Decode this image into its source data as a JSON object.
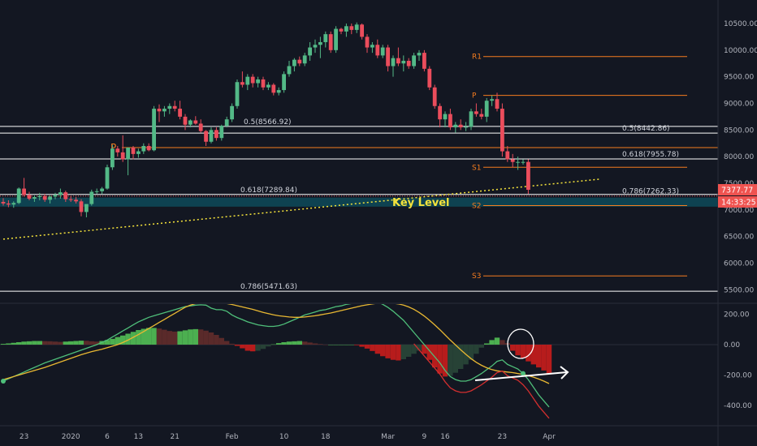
{
  "colors": {
    "background": "#131722",
    "bull": "#53b987",
    "bear": "#eb4d5c",
    "pivot": "#f57c1f",
    "fib": "#ffffff",
    "key_zone": "#0e4a59",
    "trend": "#f5e33b",
    "hist_pos": "#4caf50",
    "hist_pos_dim": "#5a2a2a",
    "hist_neg": "#b71c1c",
    "hist_neg_dim": "#274236",
    "macd": "#4fbf7a",
    "signal": "#e9b832",
    "red_line": "#d32f2f"
  },
  "price_axis": {
    "labels": [
      "10500.00",
      "10000.00",
      "9500.00",
      "9000.00",
      "8500.00",
      "8000.00",
      "7500.00",
      "7000.00",
      "6500.00",
      "6000.00",
      "5500.00"
    ],
    "values": [
      10500,
      10000,
      9500,
      9000,
      8500,
      8000,
      7500,
      7000,
      6500,
      6000,
      5500
    ],
    "last_price": "7377.77",
    "countdown": "14:33:25"
  },
  "osc_axis": {
    "labels": [
      "200.00",
      "0.00",
      "-200.00",
      "-400.00"
    ],
    "values": [
      200,
      0,
      -200,
      -400
    ]
  },
  "time_axis": {
    "labels": [
      "23",
      "2020",
      "6",
      "13",
      "21",
      "Feb",
      "10",
      "18",
      "Mar",
      "9",
      "16",
      "23",
      "Apr"
    ],
    "bars": [
      4,
      13,
      20,
      26,
      33,
      44,
      54,
      62,
      74,
      81,
      85,
      96,
      105
    ]
  },
  "levels": {
    "fib": [
      {
        "label": "0.5(8566.92)",
        "value": 8566.92
      },
      {
        "label": "0.618(7289.84)",
        "value": 7289.84
      },
      {
        "label": "0.786(5471.63)",
        "value": 5471.63
      },
      {
        "label": "0.5(8442.86)",
        "value": 8442.86
      },
      {
        "label": "0.618(7955.78)",
        "value": 7955.78
      },
      {
        "label": "0.786(7262.33)",
        "value": 7262.33
      }
    ],
    "pivots": [
      {
        "label": "P",
        "value": 8170
      },
      {
        "label": "R1",
        "value": 9880
      },
      {
        "label": "P",
        "value": 9150
      },
      {
        "label": "S1",
        "value": 7800
      },
      {
        "label": "S2",
        "value": 7080
      },
      {
        "label": "S3",
        "value": 5760
      }
    ],
    "key_level": {
      "label": "Key Level",
      "low": 7060,
      "high": 7230
    }
  },
  "chart_data": [
    {
      "type": "candlestick",
      "ylim": [
        5000,
        10750
      ],
      "x_dates": [
        "2019-12-16",
        "2020-04-05"
      ],
      "candles": [
        {
          "o": 7150,
          "h": 7220,
          "l": 7080,
          "c": 7120
        },
        {
          "o": 7120,
          "h": 7180,
          "l": 7050,
          "c": 7100
        },
        {
          "o": 7100,
          "h": 7160,
          "l": 7040,
          "c": 7130
        },
        {
          "o": 7130,
          "h": 7420,
          "l": 7110,
          "c": 7400
        },
        {
          "o": 7400,
          "h": 7600,
          "l": 7250,
          "c": 7280
        },
        {
          "o": 7280,
          "h": 7340,
          "l": 7180,
          "c": 7210
        },
        {
          "o": 7210,
          "h": 7270,
          "l": 7150,
          "c": 7240
        },
        {
          "o": 7240,
          "h": 7320,
          "l": 7180,
          "c": 7260
        },
        {
          "o": 7260,
          "h": 7300,
          "l": 7150,
          "c": 7190
        },
        {
          "o": 7190,
          "h": 7270,
          "l": 7120,
          "c": 7250
        },
        {
          "o": 7250,
          "h": 7320,
          "l": 7200,
          "c": 7280
        },
        {
          "o": 7280,
          "h": 7400,
          "l": 7210,
          "c": 7330
        },
        {
          "o": 7330,
          "h": 7360,
          "l": 7150,
          "c": 7200
        },
        {
          "o": 7200,
          "h": 7260,
          "l": 7150,
          "c": 7190
        },
        {
          "o": 7190,
          "h": 7240,
          "l": 7120,
          "c": 7160
        },
        {
          "o": 7160,
          "h": 7200,
          "l": 6880,
          "c": 6960
        },
        {
          "o": 6960,
          "h": 7100,
          "l": 6860,
          "c": 7110
        },
        {
          "o": 7110,
          "h": 7380,
          "l": 7080,
          "c": 7340
        },
        {
          "o": 7340,
          "h": 7400,
          "l": 7300,
          "c": 7350
        },
        {
          "o": 7350,
          "h": 7430,
          "l": 7300,
          "c": 7400
        },
        {
          "o": 7400,
          "h": 7850,
          "l": 7380,
          "c": 7800
        },
        {
          "o": 7800,
          "h": 8220,
          "l": 7750,
          "c": 8150
        },
        {
          "o": 8150,
          "h": 8200,
          "l": 8000,
          "c": 8080
        },
        {
          "o": 8080,
          "h": 8400,
          "l": 7900,
          "c": 7950
        },
        {
          "o": 7950,
          "h": 8170,
          "l": 7650,
          "c": 8170
        },
        {
          "o": 8170,
          "h": 8200,
          "l": 7950,
          "c": 8050
        },
        {
          "o": 8050,
          "h": 8150,
          "l": 7980,
          "c": 8100
        },
        {
          "o": 8100,
          "h": 8250,
          "l": 8050,
          "c": 8200
        },
        {
          "o": 8200,
          "h": 8250,
          "l": 8100,
          "c": 8120
        },
        {
          "o": 8120,
          "h": 8950,
          "l": 8100,
          "c": 8900
        },
        {
          "o": 8900,
          "h": 8980,
          "l": 8650,
          "c": 8850
        },
        {
          "o": 8850,
          "h": 8950,
          "l": 8750,
          "c": 8900
        },
        {
          "o": 8900,
          "h": 9000,
          "l": 8800,
          "c": 8950
        },
        {
          "o": 8950,
          "h": 9050,
          "l": 8850,
          "c": 8900
        },
        {
          "o": 8900,
          "h": 9050,
          "l": 8700,
          "c": 8750
        },
        {
          "o": 8750,
          "h": 8800,
          "l": 8500,
          "c": 8600
        },
        {
          "o": 8600,
          "h": 8700,
          "l": 8550,
          "c": 8680
        },
        {
          "o": 8680,
          "h": 8760,
          "l": 8600,
          "c": 8620
        },
        {
          "o": 8620,
          "h": 8700,
          "l": 8450,
          "c": 8480
        },
        {
          "o": 8480,
          "h": 8500,
          "l": 8200,
          "c": 8280
        },
        {
          "o": 8280,
          "h": 8550,
          "l": 8250,
          "c": 8500
        },
        {
          "o": 8500,
          "h": 8550,
          "l": 8300,
          "c": 8350
        },
        {
          "o": 8350,
          "h": 8600,
          "l": 8300,
          "c": 8580
        },
        {
          "o": 8580,
          "h": 8750,
          "l": 8550,
          "c": 8700
        },
        {
          "o": 8700,
          "h": 9000,
          "l": 8650,
          "c": 8950
        },
        {
          "o": 8950,
          "h": 9450,
          "l": 8900,
          "c": 9400
        },
        {
          "o": 9400,
          "h": 9600,
          "l": 9300,
          "c": 9350
        },
        {
          "o": 9350,
          "h": 9550,
          "l": 9250,
          "c": 9500
        },
        {
          "o": 9500,
          "h": 9550,
          "l": 9300,
          "c": 9380
        },
        {
          "o": 9380,
          "h": 9500,
          "l": 9300,
          "c": 9450
        },
        {
          "o": 9450,
          "h": 9500,
          "l": 9250,
          "c": 9300
        },
        {
          "o": 9300,
          "h": 9400,
          "l": 9250,
          "c": 9350
        },
        {
          "o": 9350,
          "h": 9380,
          "l": 9150,
          "c": 9200
        },
        {
          "o": 9200,
          "h": 9300,
          "l": 9150,
          "c": 9250
        },
        {
          "o": 9250,
          "h": 9600,
          "l": 9200,
          "c": 9550
        },
        {
          "o": 9550,
          "h": 9800,
          "l": 9500,
          "c": 9700
        },
        {
          "o": 9700,
          "h": 9850,
          "l": 9600,
          "c": 9820
        },
        {
          "o": 9820,
          "h": 9880,
          "l": 9700,
          "c": 9750
        },
        {
          "o": 9750,
          "h": 9950,
          "l": 9700,
          "c": 9900
        },
        {
          "o": 9900,
          "h": 10150,
          "l": 9800,
          "c": 10050
        },
        {
          "o": 10050,
          "h": 10200,
          "l": 9950,
          "c": 10100
        },
        {
          "o": 10100,
          "h": 10250,
          "l": 9850,
          "c": 10150
        },
        {
          "o": 10150,
          "h": 10350,
          "l": 10050,
          "c": 10300
        },
        {
          "o": 10300,
          "h": 10350,
          "l": 9950,
          "c": 10000
        },
        {
          "o": 10000,
          "h": 10450,
          "l": 9950,
          "c": 10400
        },
        {
          "o": 10400,
          "h": 10420,
          "l": 10300,
          "c": 10350
        },
        {
          "o": 10350,
          "h": 10500,
          "l": 10250,
          "c": 10450
        },
        {
          "o": 10450,
          "h": 10500,
          "l": 10300,
          "c": 10380
        },
        {
          "o": 10380,
          "h": 10520,
          "l": 10320,
          "c": 10480
        },
        {
          "o": 10480,
          "h": 10500,
          "l": 10200,
          "c": 10250
        },
        {
          "o": 10250,
          "h": 10300,
          "l": 9950,
          "c": 10050
        },
        {
          "o": 10050,
          "h": 10150,
          "l": 9950,
          "c": 10100
        },
        {
          "o": 10100,
          "h": 10200,
          "l": 9850,
          "c": 9900
        },
        {
          "o": 9900,
          "h": 10100,
          "l": 9850,
          "c": 10050
        },
        {
          "o": 10050,
          "h": 10100,
          "l": 9600,
          "c": 9700
        },
        {
          "o": 9700,
          "h": 9900,
          "l": 9500,
          "c": 9850
        },
        {
          "o": 9850,
          "h": 10050,
          "l": 9700,
          "c": 9750
        },
        {
          "o": 9750,
          "h": 9900,
          "l": 9600,
          "c": 9800
        },
        {
          "o": 9800,
          "h": 9850,
          "l": 9650,
          "c": 9700
        },
        {
          "o": 9700,
          "h": 9950,
          "l": 9650,
          "c": 9900
        },
        {
          "o": 9900,
          "h": 10000,
          "l": 9800,
          "c": 9950
        },
        {
          "o": 9950,
          "h": 10000,
          "l": 9600,
          "c": 9650
        },
        {
          "o": 9650,
          "h": 9700,
          "l": 9250,
          "c": 9300
        },
        {
          "o": 9300,
          "h": 9350,
          "l": 8900,
          "c": 8950
        },
        {
          "o": 8950,
          "h": 9000,
          "l": 8550,
          "c": 8700
        },
        {
          "o": 8700,
          "h": 8850,
          "l": 8550,
          "c": 8800
        },
        {
          "o": 8800,
          "h": 8900,
          "l": 8500,
          "c": 8550
        },
        {
          "o": 8550,
          "h": 8650,
          "l": 8450,
          "c": 8600
        },
        {
          "o": 8600,
          "h": 8700,
          "l": 8500,
          "c": 8550
        },
        {
          "o": 8550,
          "h": 8650,
          "l": 8480,
          "c": 8560
        },
        {
          "o": 8560,
          "h": 8900,
          "l": 8500,
          "c": 8850
        },
        {
          "o": 8850,
          "h": 9000,
          "l": 8750,
          "c": 8800
        },
        {
          "o": 8800,
          "h": 8900,
          "l": 8700,
          "c": 8750
        },
        {
          "o": 8750,
          "h": 9100,
          "l": 8650,
          "c": 9050
        },
        {
          "o": 9050,
          "h": 9150,
          "l": 8950,
          "c": 9080
        },
        {
          "o": 9080,
          "h": 9200,
          "l": 8850,
          "c": 8900
        },
        {
          "o": 8900,
          "h": 9000,
          "l": 8000,
          "c": 8100
        },
        {
          "o": 8100,
          "h": 8200,
          "l": 7900,
          "c": 7950
        },
        {
          "o": 7950,
          "h": 8050,
          "l": 7800,
          "c": 7900
        },
        {
          "o": 7900,
          "h": 8000,
          "l": 7750,
          "c": 7900
        },
        {
          "o": 7900,
          "h": 7950,
          "l": 7850,
          "c": 7900
        },
        {
          "o": 7900,
          "h": 7950,
          "l": 7300,
          "c": 7377.77
        }
      ],
      "trendline": {
        "x": [
          0,
          115
        ],
        "y": [
          6450,
          7580
        ]
      }
    },
    {
      "type": "histogram",
      "ylim": [
        -520,
        300
      ],
      "histogram": [
        5,
        8,
        12,
        16,
        20,
        22,
        24,
        24,
        23,
        22,
        20,
        18,
        20,
        22,
        24,
        26,
        25,
        22,
        20,
        24,
        30,
        38,
        50,
        60,
        72,
        84,
        96,
        104,
        110,
        110,
        106,
        98,
        90,
        86,
        88,
        94,
        100,
        102,
        100,
        92,
        80,
        64,
        44,
        24,
        6,
        -8,
        -24,
        -40,
        -44,
        -40,
        -28,
        -12,
        2,
        10,
        16,
        20,
        22,
        24,
        20,
        14,
        8,
        4,
        0,
        0,
        0,
        0,
        0,
        0,
        -4,
        -14,
        -26,
        -42,
        -60,
        -76,
        -90,
        -100,
        -104,
        -96,
        -80,
        -60,
        -40,
        -60,
        -100,
        -150,
        -190,
        -210,
        -205,
        -185,
        -160,
        -130,
        -100,
        -60,
        -20,
        8,
        30,
        46,
        30,
        10,
        -40,
        -70,
        -90,
        -110,
        -130,
        -150,
        -170,
        -190
      ],
      "macd_line": [
        -240,
        -225,
        -210,
        -195,
        -180,
        -165,
        -150,
        -135,
        -120,
        -108,
        -96,
        -84,
        -72,
        -60,
        -48,
        -36,
        -24,
        -12,
        0,
        15,
        30,
        50,
        70,
        90,
        110,
        130,
        150,
        165,
        180,
        190,
        200,
        210,
        220,
        230,
        240,
        250,
        255,
        260,
        262,
        260,
        240,
        230,
        230,
        220,
        195,
        178,
        165,
        150,
        140,
        130,
        125,
        120,
        120,
        125,
        135,
        150,
        165,
        180,
        195,
        205,
        215,
        225,
        230,
        240,
        250,
        255,
        265,
        270,
        275,
        280,
        285,
        285,
        280,
        265,
        245,
        220,
        190,
        160,
        120,
        80,
        40,
        0,
        -40,
        -80,
        -120,
        -170,
        -210,
        -230,
        -240,
        -240,
        -230,
        -210,
        -190,
        -165,
        -140,
        -110,
        -100,
        -130,
        -145,
        -160,
        -190,
        -230,
        -280,
        -330,
        -370,
        -410
      ],
      "signal_line": [
        -230,
        -220,
        -210,
        -200,
        -190,
        -180,
        -170,
        -160,
        -150,
        -138,
        -126,
        -114,
        -102,
        -90,
        -78,
        -66,
        -56,
        -46,
        -38,
        -30,
        -20,
        -10,
        0,
        14,
        30,
        48,
        66,
        86,
        106,
        126,
        146,
        166,
        186,
        206,
        226,
        246,
        260,
        270,
        278,
        282,
        282,
        278,
        274,
        270,
        264,
        256,
        248,
        240,
        232,
        222,
        212,
        204,
        196,
        190,
        186,
        182,
        180,
        180,
        182,
        186,
        190,
        196,
        202,
        208,
        216,
        224,
        232,
        240,
        248,
        256,
        262,
        268,
        272,
        274,
        274,
        272,
        268,
        260,
        248,
        232,
        212,
        188,
        160,
        130,
        98,
        64,
        30,
        -2,
        -34,
        -64,
        -92,
        -116,
        -136,
        -152,
        -164,
        -172,
        -176,
        -180,
        -184,
        -190,
        -196,
        -204,
        -214,
        -226,
        -240,
        -256
      ]
    }
  ]
}
